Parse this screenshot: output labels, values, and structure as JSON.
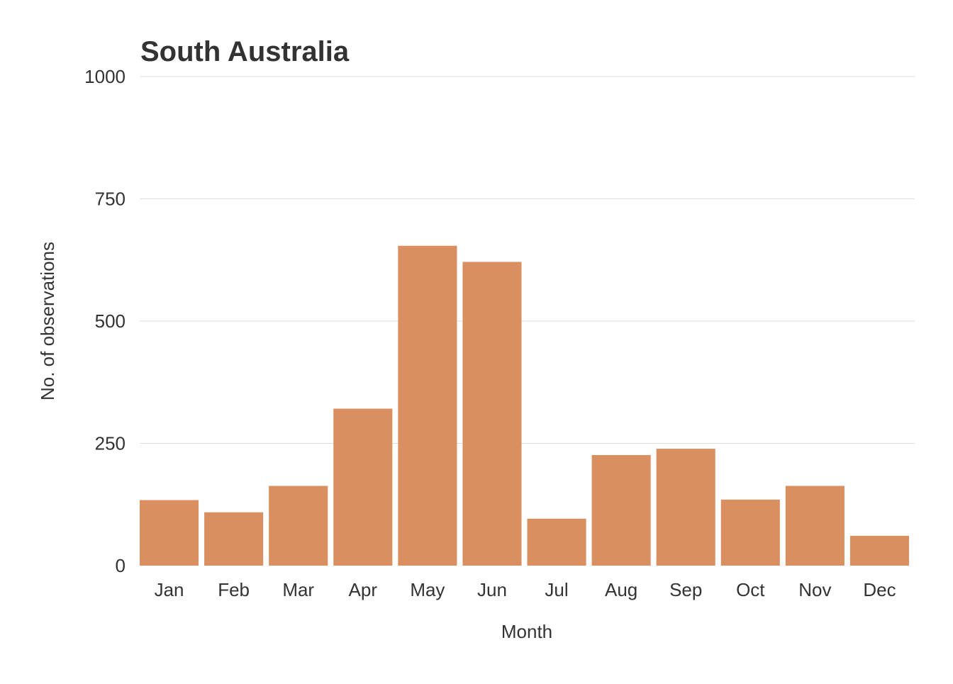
{
  "chart_data": {
    "type": "bar",
    "title": "South Australia",
    "xlabel": "Month",
    "ylabel": "No. of observations",
    "categories": [
      "Jan",
      "Feb",
      "Mar",
      "Apr",
      "May",
      "Jun",
      "Jul",
      "Aug",
      "Sep",
      "Oct",
      "Nov",
      "Dec"
    ],
    "values": [
      134,
      109,
      163,
      321,
      654,
      621,
      96,
      226,
      239,
      135,
      163,
      61
    ],
    "ylim": [
      0,
      1000
    ],
    "yticks": [
      0,
      250,
      500,
      750,
      1000
    ],
    "grid": true,
    "legend": "none",
    "colors": {
      "bar": "#d98f5f",
      "grid": "#dcdcdc",
      "text": "#333333"
    }
  }
}
